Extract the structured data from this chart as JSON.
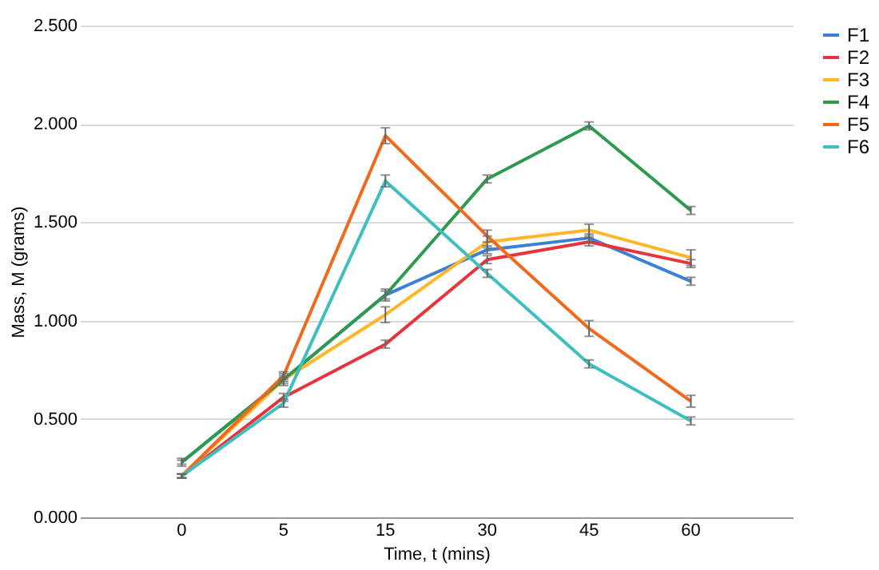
{
  "chart_data": {
    "type": "line",
    "xlabel": "Time, t (mins)",
    "ylabel": "Mass, M (grams)",
    "categories": [
      "0",
      "5",
      "15",
      "30",
      "45",
      "60"
    ],
    "series": [
      {
        "name": "F1",
        "color": "#3b7fd6",
        "values": [
          0.28,
          0.7,
          1.13,
          1.36,
          1.42,
          1.2
        ],
        "errors": [
          0.01,
          0.02,
          0.02,
          0.02,
          0.02,
          0.02
        ]
      },
      {
        "name": "F2",
        "color": "#e8323c",
        "values": [
          0.21,
          0.61,
          0.88,
          1.31,
          1.4,
          1.29
        ],
        "errors": [
          0.01,
          0.02,
          0.02,
          0.02,
          0.02,
          0.02
        ]
      },
      {
        "name": "F3",
        "color": "#ffb629",
        "values": [
          0.21,
          0.7,
          1.03,
          1.4,
          1.46,
          1.32
        ],
        "errors": [
          0.01,
          0.01,
          0.04,
          0.03,
          0.03,
          0.04
        ]
      },
      {
        "name": "F4",
        "color": "#2e9a4e",
        "values": [
          0.28,
          0.7,
          1.13,
          1.72,
          1.99,
          1.56
        ],
        "errors": [
          0.02,
          0.03,
          0.03,
          0.02,
          0.02,
          0.02
        ]
      },
      {
        "name": "F5",
        "color": "#f2691c",
        "values": [
          0.21,
          0.72,
          1.94,
          1.43,
          0.96,
          0.59
        ],
        "errors": [
          0.01,
          0.02,
          0.04,
          0.03,
          0.04,
          0.03
        ]
      },
      {
        "name": "F6",
        "color": "#3dbfbf",
        "values": [
          0.21,
          0.58,
          1.71,
          1.24,
          0.78,
          0.49
        ],
        "errors": [
          0.01,
          0.02,
          0.03,
          0.02,
          0.02,
          0.02
        ]
      }
    ],
    "ylim": [
      0,
      2.5
    ],
    "yticks": [
      {
        "value": 0,
        "label": "0.000"
      },
      {
        "value": 0.5,
        "label": "0.500"
      },
      {
        "value": 1,
        "label": "1.000"
      },
      {
        "value": 1.5,
        "label": "1.500"
      },
      {
        "value": 2,
        "label": "2.000"
      },
      {
        "value": 2.5,
        "label": "2.500"
      }
    ],
    "grid": "y",
    "legend": "right",
    "marker": "none",
    "line_style": "solid"
  }
}
